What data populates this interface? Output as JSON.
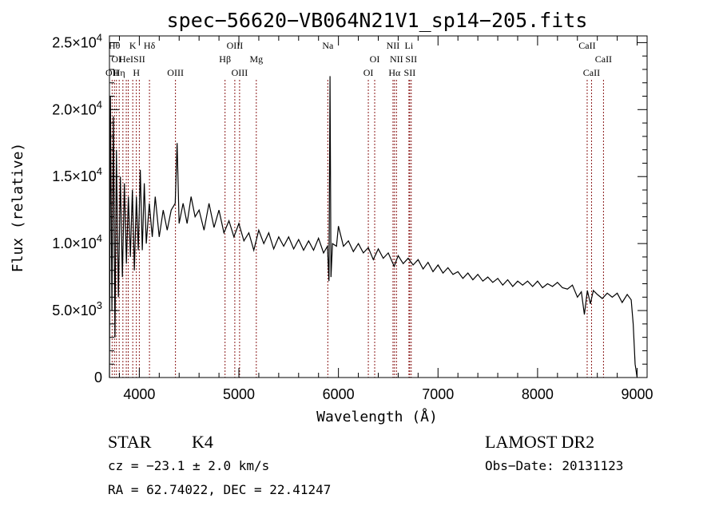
{
  "chart_data": {
    "type": "line",
    "title": "spec−56620−VB064N21V1_sp14−205.fits",
    "xlabel": "Wavelength (Å)",
    "ylabel": "Flux (relative)",
    "xlim": [
      3700,
      9100
    ],
    "ylim": [
      0,
      25500
    ],
    "x_ticks": [
      {
        "value": 4000,
        "label": "4000"
      },
      {
        "value": 5000,
        "label": "5000"
      },
      {
        "value": 6000,
        "label": "6000"
      },
      {
        "value": 7000,
        "label": "7000"
      },
      {
        "value": 8000,
        "label": "8000"
      },
      {
        "value": 9000,
        "label": "9000"
      }
    ],
    "y_ticks": [
      {
        "value": 0,
        "mantissa": "0",
        "exponent": ""
      },
      {
        "value": 5000,
        "mantissa": "5.0×10",
        "exponent": "3"
      },
      {
        "value": 10000,
        "mantissa": "1.0×10",
        "exponent": "4"
      },
      {
        "value": 15000,
        "mantissa": "1.5×10",
        "exponent": "4"
      },
      {
        "value": 20000,
        "mantissa": "2.0×10",
        "exponent": "4"
      },
      {
        "value": 25000,
        "mantissa": "2.5×10",
        "exponent": "4"
      }
    ],
    "series": [
      {
        "color": "#000000",
        "points": [
          [
            3700,
            0
          ],
          [
            3710,
            21000
          ],
          [
            3725,
            5000
          ],
          [
            3740,
            19500
          ],
          [
            3755,
            3000
          ],
          [
            3770,
            17000
          ],
          [
            3790,
            6000
          ],
          [
            3810,
            15000
          ],
          [
            3830,
            7500
          ],
          [
            3850,
            14500
          ],
          [
            3870,
            8500
          ],
          [
            3890,
            13500
          ],
          [
            3910,
            9000
          ],
          [
            3930,
            14000
          ],
          [
            3950,
            8000
          ],
          [
            3970,
            13500
          ],
          [
            3990,
            9500
          ],
          [
            4010,
            15500
          ],
          [
            4030,
            9500
          ],
          [
            4050,
            14500
          ],
          [
            4070,
            10000
          ],
          [
            4100,
            13000
          ],
          [
            4130,
            10500
          ],
          [
            4160,
            13500
          ],
          [
            4200,
            10500
          ],
          [
            4240,
            12500
          ],
          [
            4280,
            11000
          ],
          [
            4320,
            12500
          ],
          [
            4360,
            13000
          ],
          [
            4380,
            17500
          ],
          [
            4400,
            11500
          ],
          [
            4440,
            13000
          ],
          [
            4480,
            11500
          ],
          [
            4520,
            13500
          ],
          [
            4560,
            12000
          ],
          [
            4600,
            12500
          ],
          [
            4650,
            11000
          ],
          [
            4700,
            13000
          ],
          [
            4750,
            11200
          ],
          [
            4800,
            12500
          ],
          [
            4850,
            10800
          ],
          [
            4900,
            11700
          ],
          [
            4950,
            10500
          ],
          [
            5000,
            11500
          ],
          [
            5050,
            10200
          ],
          [
            5100,
            10800
          ],
          [
            5150,
            9500
          ],
          [
            5200,
            11000
          ],
          [
            5250,
            10000
          ],
          [
            5300,
            10800
          ],
          [
            5350,
            9600
          ],
          [
            5400,
            10500
          ],
          [
            5450,
            9800
          ],
          [
            5500,
            10500
          ],
          [
            5550,
            9600
          ],
          [
            5600,
            10300
          ],
          [
            5650,
            9500
          ],
          [
            5700,
            10200
          ],
          [
            5750,
            9500
          ],
          [
            5800,
            10400
          ],
          [
            5850,
            9300
          ],
          [
            5890,
            9800
          ],
          [
            5905,
            7200
          ],
          [
            5915,
            22500
          ],
          [
            5925,
            7500
          ],
          [
            5940,
            10000
          ],
          [
            5980,
            9800
          ],
          [
            6000,
            11300
          ],
          [
            6050,
            9800
          ],
          [
            6100,
            10200
          ],
          [
            6150,
            9400
          ],
          [
            6200,
            10000
          ],
          [
            6250,
            9300
          ],
          [
            6300,
            9700
          ],
          [
            6350,
            8800
          ],
          [
            6400,
            9600
          ],
          [
            6450,
            8900
          ],
          [
            6500,
            9300
          ],
          [
            6560,
            8300
          ],
          [
            6600,
            9100
          ],
          [
            6650,
            8500
          ],
          [
            6700,
            8900
          ],
          [
            6750,
            8400
          ],
          [
            6800,
            8800
          ],
          [
            6850,
            8100
          ],
          [
            6900,
            8600
          ],
          [
            6950,
            7900
          ],
          [
            7000,
            8400
          ],
          [
            7050,
            7800
          ],
          [
            7100,
            8200
          ],
          [
            7150,
            7700
          ],
          [
            7200,
            7900
          ],
          [
            7250,
            7400
          ],
          [
            7300,
            7800
          ],
          [
            7350,
            7300
          ],
          [
            7400,
            7700
          ],
          [
            7450,
            7200
          ],
          [
            7500,
            7500
          ],
          [
            7550,
            7100
          ],
          [
            7600,
            7400
          ],
          [
            7650,
            6900
          ],
          [
            7700,
            7300
          ],
          [
            7750,
            6800
          ],
          [
            7800,
            7200
          ],
          [
            7850,
            6900
          ],
          [
            7900,
            7200
          ],
          [
            7950,
            6800
          ],
          [
            8000,
            7200
          ],
          [
            8050,
            6700
          ],
          [
            8100,
            7000
          ],
          [
            8150,
            6800
          ],
          [
            8200,
            7100
          ],
          [
            8250,
            6700
          ],
          [
            8300,
            6600
          ],
          [
            8350,
            6900
          ],
          [
            8400,
            6000
          ],
          [
            8440,
            6400
          ],
          [
            8470,
            4700
          ],
          [
            8500,
            6500
          ],
          [
            8530,
            5500
          ],
          [
            8560,
            6500
          ],
          [
            8600,
            6200
          ],
          [
            8650,
            5900
          ],
          [
            8700,
            6300
          ],
          [
            8750,
            6000
          ],
          [
            8800,
            6300
          ],
          [
            8850,
            5600
          ],
          [
            8900,
            6200
          ],
          [
            8940,
            5800
          ],
          [
            8960,
            4000
          ],
          [
            8980,
            1000
          ],
          [
            9000,
            0
          ]
        ]
      }
    ],
    "spectral_lines": [
      {
        "wavelength": 3727,
        "label": "OII",
        "row": 3
      },
      {
        "wavelength": 3750,
        "label": "Hθ",
        "row": 1
      },
      {
        "wavelength": 3770,
        "label": "OI",
        "row": 2
      },
      {
        "wavelength": 3798,
        "label": "Hη",
        "row": 3
      },
      {
        "wavelength": 3835,
        "label": "",
        "row": 0
      },
      {
        "wavelength": 3869,
        "label": "HeI",
        "row": 2
      },
      {
        "wavelength": 3889,
        "label": "",
        "row": 0
      },
      {
        "wavelength": 3934,
        "label": "K",
        "row": 1
      },
      {
        "wavelength": 3970,
        "label": "H",
        "row": 3
      },
      {
        "wavelength": 4000,
        "label": "SII",
        "row": 2
      },
      {
        "wavelength": 4102,
        "label": "Hδ",
        "row": 1
      },
      {
        "wavelength": 4363,
        "label": "OIII",
        "row": 3
      },
      {
        "wavelength": 4861,
        "label": "Hβ",
        "row": 2
      },
      {
        "wavelength": 4959,
        "label": "OIII",
        "row": 1
      },
      {
        "wavelength": 5007,
        "label": "OIII",
        "row": 3
      },
      {
        "wavelength": 5175,
        "label": "Mg",
        "row": 2
      },
      {
        "wavelength": 5893,
        "label": "Na",
        "row": 1
      },
      {
        "wavelength": 6300,
        "label": "OI",
        "row": 3
      },
      {
        "wavelength": 6364,
        "label": "OI",
        "row": 2
      },
      {
        "wavelength": 6548,
        "label": "NII",
        "row": 1
      },
      {
        "wavelength": 6563,
        "label": "Hα",
        "row": 3
      },
      {
        "wavelength": 6583,
        "label": "NII",
        "row": 2
      },
      {
        "wavelength": 6708,
        "label": "Li",
        "row": 1
      },
      {
        "wavelength": 6716,
        "label": "SII",
        "row": 3
      },
      {
        "wavelength": 6731,
        "label": "SII",
        "row": 2
      },
      {
        "wavelength": 8498,
        "label": "CaII",
        "row": 1
      },
      {
        "wavelength": 8542,
        "label": "CaII",
        "row": 3
      },
      {
        "wavelength": 8662,
        "label": "CaII",
        "row": 2
      }
    ]
  },
  "info": {
    "object_class": "STAR",
    "subclass": "K4",
    "survey": "LAMOST DR2",
    "redshift": "cz = −23.1 ± 2.0 km/s",
    "obs_date": "Obs−Date: 20131123",
    "coords": "RA =  62.74022, DEC =  22.41247"
  },
  "colors": {
    "axes": "#000000",
    "spectrum": "#000000",
    "line_marker": "#8b1a1a",
    "background": "#ffffff"
  }
}
